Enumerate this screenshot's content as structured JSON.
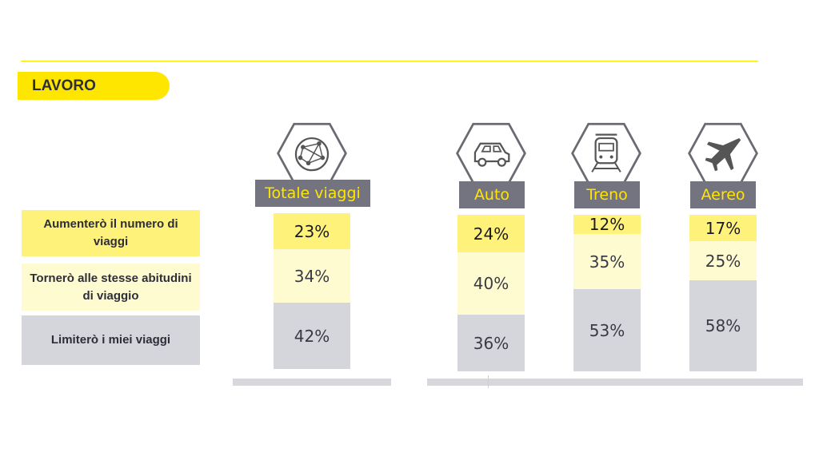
{
  "section_title": "LAVORO",
  "colors": {
    "increase": "#fff27a",
    "same": "#fffbd0",
    "limit": "#d5d5dc",
    "label_bg": "#747480",
    "label_text": "#ffe600",
    "accent": "#ffe600"
  },
  "legend": [
    {
      "key": "increase",
      "label": "Aumenterò il numero di viaggi"
    },
    {
      "key": "same",
      "label": "Tornerò alle stesse abitudini di viaggio"
    },
    {
      "key": "limit",
      "label": "Limiterò i miei viaggi"
    }
  ],
  "chart_data": {
    "type": "bar",
    "stacked": true,
    "unit": "%",
    "categories": [
      "Totale viaggi",
      "Auto",
      "Treno",
      "Aereo"
    ],
    "icons": [
      "globe-network-icon",
      "car-icon",
      "train-icon",
      "airplane-icon"
    ],
    "series": [
      {
        "name": "Aumenterò il numero di viaggi",
        "values": [
          23,
          24,
          12,
          17
        ]
      },
      {
        "name": "Tornerò alle stesse abitudini di viaggio",
        "values": [
          34,
          40,
          35,
          25
        ]
      },
      {
        "name": "Limiterò i miei viaggi",
        "values": [
          42,
          36,
          53,
          58
        ]
      }
    ],
    "labels": [
      [
        "23%",
        "34%",
        "42%"
      ],
      [
        "24%",
        "40%",
        "36%"
      ],
      [
        "12%",
        "35%",
        "53%"
      ],
      [
        "17%",
        "25%",
        "58%"
      ]
    ]
  }
}
